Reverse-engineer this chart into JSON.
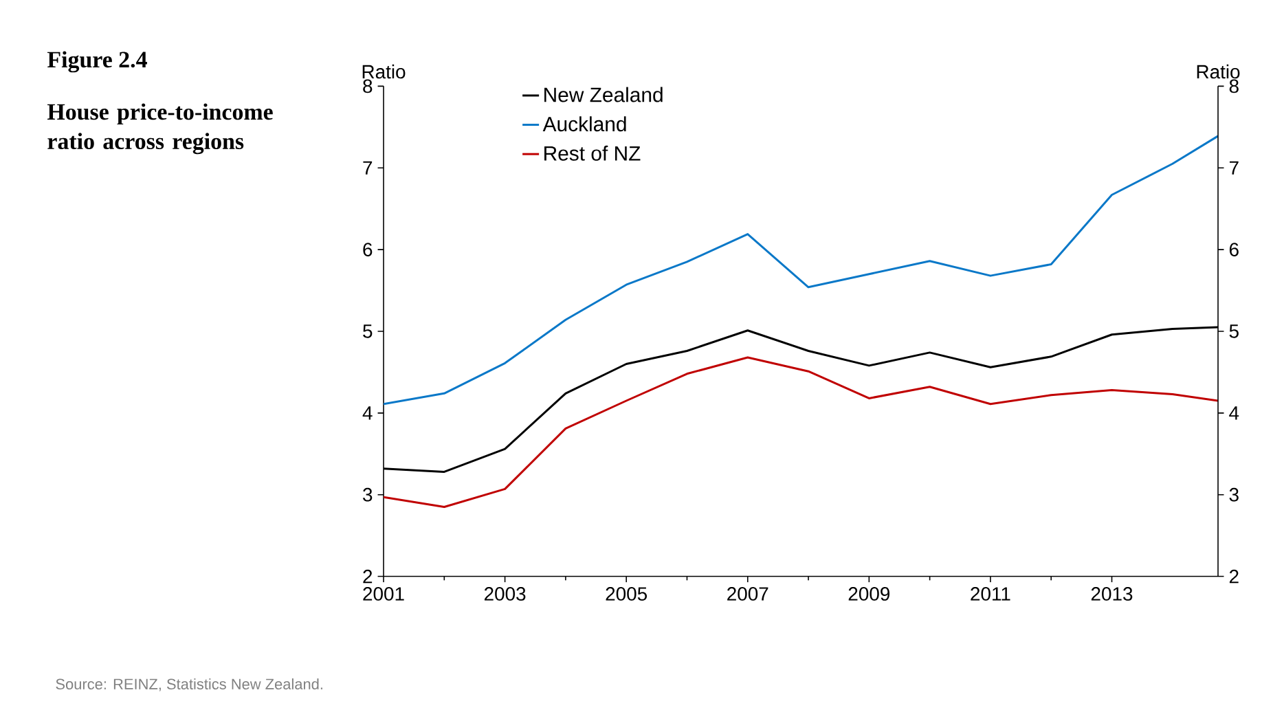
{
  "chart_data": {
    "type": "line",
    "title": "Figure 2.4",
    "subtitle": "House price-to-income ratio across regions",
    "ylabel": "Ratio",
    "y2label": "Ratio",
    "x": [
      2001,
      2002,
      2003,
      2004,
      2005,
      2006,
      2007,
      2008,
      2009,
      2010,
      2011,
      2012,
      2013,
      2014,
      2014.75
    ],
    "series": [
      {
        "name": "New Zealand",
        "color": "#000000",
        "values": [
          3.32,
          3.28,
          3.56,
          4.24,
          4.6,
          4.76,
          5.01,
          4.76,
          4.58,
          4.74,
          4.56,
          4.69,
          4.96,
          5.03,
          5.05
        ]
      },
      {
        "name": "Auckland",
        "color": "#0a78c8",
        "values": [
          4.11,
          4.24,
          4.61,
          5.14,
          5.57,
          5.85,
          6.19,
          5.54,
          5.7,
          5.86,
          5.68,
          5.82,
          6.67,
          7.05,
          7.39
        ]
      },
      {
        "name": "Rest of NZ",
        "color": "#c00000",
        "values": [
          2.97,
          2.85,
          3.07,
          3.81,
          4.15,
          4.48,
          4.68,
          4.51,
          4.18,
          4.32,
          4.11,
          4.22,
          4.28,
          4.23,
          4.15
        ]
      }
    ],
    "xlim": [
      2001,
      2014.75
    ],
    "xticks": [
      2001,
      2003,
      2005,
      2007,
      2009,
      2011,
      2013
    ],
    "ylim": [
      2,
      8
    ],
    "yticks": [
      2,
      3,
      4,
      5,
      6,
      7,
      8
    ],
    "y2lim": [
      2,
      8
    ],
    "y2ticks": [
      2,
      3,
      4,
      5,
      6,
      7,
      8
    ],
    "legend": "top left",
    "annotations": [
      "Source:   REINZ, Statistics New Zealand."
    ]
  }
}
